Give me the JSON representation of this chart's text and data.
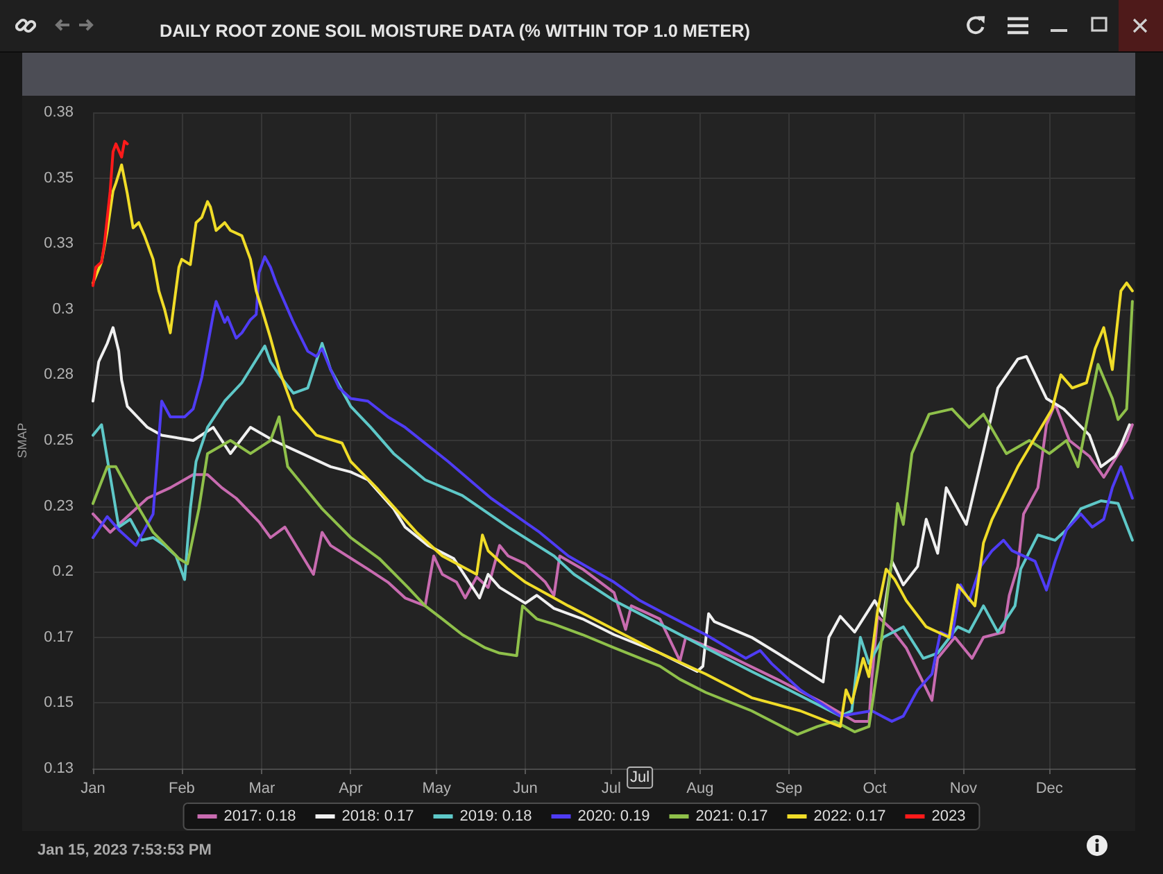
{
  "chart_data": {
    "type": "line",
    "title": "DAILY ROOT ZONE SOIL MOISTURE DATA (% WITHIN TOP 1.0 METER)",
    "ylabel": "SMAP",
    "xlim": [
      "--01-01",
      "--12-31"
    ],
    "xticks": [
      {
        "value": "--01-01",
        "label": "Jan"
      },
      {
        "value": "--02-01",
        "label": "Feb"
      },
      {
        "value": "--03-01",
        "label": "Mar"
      },
      {
        "value": "--04-01",
        "label": "Apr"
      },
      {
        "value": "--05-01",
        "label": "May"
      },
      {
        "value": "--06-01",
        "label": "Jun"
      },
      {
        "value": "--07-01",
        "label": "Jul"
      },
      {
        "value": "--08-01",
        "label": "Aug"
      },
      {
        "value": "--09-01",
        "label": "Sep"
      },
      {
        "value": "--10-01",
        "label": "Oct"
      },
      {
        "value": "--11-01",
        "label": "Nov"
      },
      {
        "value": "--12-01",
        "label": "Dec"
      }
    ],
    "ylim": [
      0.125,
      0.375
    ],
    "yticks": [
      {
        "value": 0.125,
        "label": "0.13"
      },
      0.15,
      {
        "value": 0.175,
        "label": "0.17"
      },
      0.2,
      {
        "value": 0.225,
        "label": "0.23"
      },
      0.25,
      {
        "value": 0.275,
        "label": "0.28"
      },
      0.3,
      {
        "value": 0.325,
        "label": "0.33"
      },
      0.35,
      {
        "value": 0.375,
        "label": "0.38"
      }
    ],
    "grid": true,
    "legend": "bottom",
    "marker": "none",
    "annotations": [
      {
        "text": "Jul",
        "x": "--07-11"
      },
      "Jan 15, 2023 7:53:53 PM"
    ],
    "series": [
      {
        "name": "2017: 0.18",
        "color": "#c86bb0",
        "x": [
          "--01-01",
          "--01-07",
          "--01-12",
          "--01-20",
          "--01-28",
          "--02-05",
          "--02-10",
          "--02-15",
          "--02-20",
          "--02-28",
          "--03-04",
          "--03-09",
          "--03-19",
          "--03-22",
          "--03-25",
          "--04-07",
          "--04-14",
          "--04-20",
          "--04-27",
          "--04-30",
          "--05-03",
          "--05-08",
          "--05-11",
          "--05-15",
          "--05-19",
          "--05-23",
          "--05-26",
          "--06-01",
          "--06-08",
          "--06-11",
          "--06-13",
          "--06-21",
          "--07-02",
          "--07-06",
          "--07-08",
          "--07-18",
          "--07-25",
          "--07-27",
          "--08-11",
          "--08-28",
          "--09-13",
          "--09-24",
          "--09-29",
          "--09-30",
          "--10-02",
          "--10-07",
          "--10-12",
          "--10-21",
          "--10-23",
          "--10-29",
          "--11-04",
          "--11-08",
          "--11-15",
          "--11-17",
          "--11-20",
          "--11-22",
          "--11-27",
          "--11-30",
          "--12-03",
          "--12-08",
          "--12-15",
          "--12-20",
          "--12-28",
          "--12-30"
        ],
        "values": [
          0.222,
          0.215,
          0.22,
          0.228,
          0.232,
          0.237,
          0.237,
          0.232,
          0.228,
          0.219,
          0.213,
          0.217,
          0.199,
          0.215,
          0.21,
          0.201,
          0.196,
          0.19,
          0.187,
          0.206,
          0.199,
          0.196,
          0.19,
          0.198,
          0.194,
          0.21,
          0.206,
          0.203,
          0.196,
          0.191,
          0.206,
          0.201,
          0.192,
          0.178,
          0.187,
          0.182,
          0.166,
          0.175,
          0.168,
          0.159,
          0.15,
          0.143,
          0.143,
          0.159,
          0.183,
          0.178,
          0.171,
          0.151,
          0.167,
          0.175,
          0.167,
          0.175,
          0.177,
          0.191,
          0.202,
          0.222,
          0.232,
          0.256,
          0.264,
          0.25,
          0.244,
          0.236,
          0.25,
          0.256
        ]
      },
      {
        "name": "2018: 0.17",
        "color": "#f0f0f0",
        "x": [
          "--01-01",
          "--01-03",
          "--01-06",
          "--01-08",
          "--01-10",
          "--01-11",
          "--01-13",
          "--01-20",
          "--01-25",
          "--02-05",
          "--02-12",
          "--02-18",
          "--02-25",
          "--03-05",
          "--03-15",
          "--03-25",
          "--04-01",
          "--04-07",
          "--04-16",
          "--04-20",
          "--04-28",
          "--05-07",
          "--05-16",
          "--05-19",
          "--05-23",
          "--06-01",
          "--06-05",
          "--06-11",
          "--06-21",
          "--07-02",
          "--07-18",
          "--07-31",
          "--08-02",
          "--08-04",
          "--08-06",
          "--08-19",
          "--08-28",
          "--09-13",
          "--09-15",
          "--09-19",
          "--09-24",
          "--10-01",
          "--10-04",
          "--10-07",
          "--10-11",
          "--10-16",
          "--10-19",
          "--10-23",
          "--10-26",
          "--11-02",
          "--11-08",
          "--11-13",
          "--11-20",
          "--11-23",
          "--11-30",
          "--12-06",
          "--12-15",
          "--12-19",
          "--12-24",
          "--12-26",
          "--12-29"
        ],
        "values": [
          0.265,
          0.28,
          0.287,
          0.293,
          0.284,
          0.273,
          0.263,
          0.255,
          0.252,
          0.25,
          0.255,
          0.245,
          0.255,
          0.25,
          0.245,
          0.24,
          0.238,
          0.235,
          0.224,
          0.217,
          0.21,
          0.205,
          0.19,
          0.199,
          0.194,
          0.188,
          0.191,
          0.186,
          0.182,
          0.176,
          0.169,
          0.162,
          0.164,
          0.184,
          0.181,
          0.175,
          0.169,
          0.158,
          0.175,
          0.183,
          0.177,
          0.189,
          0.183,
          0.204,
          0.195,
          0.202,
          0.22,
          0.207,
          0.232,
          0.218,
          0.246,
          0.27,
          0.281,
          0.282,
          0.266,
          0.262,
          0.252,
          0.24,
          0.244,
          0.248,
          0.256
        ]
      },
      {
        "name": "2019: 0.18",
        "color": "#5ec8c8",
        "x": [
          "--01-01",
          "--01-04",
          "--01-08",
          "--01-10",
          "--01-14",
          "--01-18",
          "--01-22",
          "--01-26",
          "--01-30",
          "--02-02",
          "--02-04",
          "--02-06",
          "--02-10",
          "--02-16",
          "--02-22",
          "--03-02",
          "--03-04",
          "--03-07",
          "--03-12",
          "--03-17",
          "--03-22",
          "--03-25",
          "--04-01",
          "--04-08",
          "--04-16",
          "--04-27",
          "--05-10",
          "--05-26",
          "--06-11",
          "--06-18",
          "--07-02",
          "--07-18",
          "--08-03",
          "--08-19",
          "--09-01",
          "--09-19",
          "--09-23",
          "--09-26",
          "--09-29",
          "--10-04",
          "--10-11",
          "--10-18",
          "--10-23",
          "--10-30",
          "--11-03",
          "--11-08",
          "--11-13",
          "--11-19",
          "--11-21",
          "--11-27",
          "--12-03",
          "--12-07",
          "--12-12",
          "--12-19",
          "--12-25",
          "--12-30"
        ],
        "values": [
          0.252,
          0.256,
          0.23,
          0.217,
          0.22,
          0.212,
          0.213,
          0.21,
          0.206,
          0.197,
          0.224,
          0.242,
          0.255,
          0.265,
          0.272,
          0.286,
          0.28,
          0.275,
          0.268,
          0.27,
          0.287,
          0.277,
          0.263,
          0.255,
          0.245,
          0.235,
          0.229,
          0.217,
          0.206,
          0.199,
          0.189,
          0.18,
          0.171,
          0.162,
          0.155,
          0.145,
          0.147,
          0.175,
          0.165,
          0.175,
          0.179,
          0.167,
          0.169,
          0.179,
          0.177,
          0.187,
          0.177,
          0.187,
          0.201,
          0.214,
          0.212,
          0.216,
          0.224,
          0.227,
          0.226,
          0.212
        ]
      },
      {
        "name": "2020: 0.19",
        "color": "#4f3cf5",
        "x": [
          "--01-01",
          "--01-06",
          "--01-10",
          "--01-16",
          "--01-22",
          "--01-25",
          "--01-28",
          "--02-02",
          "--02-05",
          "--02-08",
          "--02-12",
          "--02-13",
          "--02-16",
          "--02-17",
          "--02-20",
          "--02-22",
          "--02-25",
          "--02-27",
          "--02-28",
          "--03-02",
          "--03-04",
          "--03-06",
          "--03-08",
          "--03-12",
          "--03-17",
          "--03-20",
          "--03-22",
          "--03-25",
          "--03-28",
          "--04-01",
          "--04-07",
          "--04-14",
          "--04-20",
          "--05-05",
          "--05-20",
          "--06-06",
          "--06-16",
          "--06-24",
          "--07-02",
          "--07-11",
          "--07-18",
          "--08-03",
          "--08-17",
          "--08-22",
          "--08-26",
          "--09-05",
          "--09-19",
          "--09-30",
          "--10-07",
          "--10-11",
          "--10-16",
          "--10-21",
          "--10-24",
          "--10-28",
          "--10-31",
          "--11-03",
          "--11-07",
          "--11-11",
          "--11-15",
          "--11-18",
          "--11-26",
          "--11-30",
          "--12-03",
          "--12-07",
          "--12-12",
          "--12-16",
          "--12-20",
          "--12-23",
          "--12-26",
          "--12-30"
        ],
        "values": [
          0.213,
          0.221,
          0.216,
          0.21,
          0.222,
          0.265,
          0.259,
          0.259,
          0.262,
          0.274,
          0.298,
          0.303,
          0.295,
          0.297,
          0.289,
          0.291,
          0.296,
          0.298,
          0.314,
          0.32,
          0.316,
          0.31,
          0.305,
          0.295,
          0.284,
          0.282,
          0.285,
          0.277,
          0.27,
          0.266,
          0.265,
          0.259,
          0.255,
          0.242,
          0.228,
          0.215,
          0.206,
          0.201,
          0.196,
          0.189,
          0.185,
          0.176,
          0.167,
          0.17,
          0.165,
          0.155,
          0.145,
          0.147,
          0.143,
          0.145,
          0.155,
          0.161,
          0.177,
          0.175,
          0.195,
          0.189,
          0.202,
          0.208,
          0.212,
          0.208,
          0.204,
          0.193,
          0.204,
          0.216,
          0.222,
          0.217,
          0.22,
          0.232,
          0.24,
          0.228
        ]
      },
      {
        "name": "2021: 0.17",
        "color": "#8fc04a",
        "x": [
          "--01-01",
          "--01-06",
          "--01-09",
          "--01-15",
          "--01-22",
          "--01-31",
          "--02-03",
          "--02-07",
          "--02-10",
          "--02-18",
          "--02-25",
          "--03-04",
          "--03-07",
          "--03-10",
          "--03-22",
          "--04-01",
          "--04-11",
          "--04-21",
          "--04-27",
          "--05-03",
          "--05-10",
          "--05-18",
          "--05-23",
          "--05-29",
          "--05-31",
          "--06-05",
          "--06-11",
          "--06-21",
          "--07-02",
          "--07-18",
          "--07-25",
          "--08-03",
          "--08-19",
          "--09-04",
          "--09-11",
          "--09-17",
          "--09-24",
          "--09-29",
          "--10-02",
          "--10-07",
          "--10-09",
          "--10-11",
          "--10-14",
          "--10-20",
          "--10-28",
          "--11-03",
          "--11-08",
          "--11-16",
          "--11-24",
          "--12-01",
          "--12-07",
          "--12-11",
          "--12-18",
          "--12-23",
          "--12-25",
          "--12-28",
          "--12-30"
        ],
        "values": [
          0.226,
          0.24,
          0.24,
          0.228,
          0.215,
          0.205,
          0.203,
          0.224,
          0.245,
          0.25,
          0.245,
          0.25,
          0.259,
          0.24,
          0.224,
          0.213,
          0.205,
          0.194,
          0.187,
          0.182,
          0.176,
          0.171,
          0.169,
          0.168,
          0.187,
          0.182,
          0.18,
          0.176,
          0.171,
          0.164,
          0.159,
          0.154,
          0.147,
          0.138,
          0.141,
          0.143,
          0.139,
          0.141,
          0.163,
          0.204,
          0.226,
          0.218,
          0.245,
          0.26,
          0.262,
          0.255,
          0.26,
          0.245,
          0.25,
          0.245,
          0.25,
          0.24,
          0.279,
          0.266,
          0.258,
          0.262,
          0.303
        ]
      },
      {
        "name": "2022: 0.17",
        "color": "#f0dc28",
        "x": [
          "--01-01",
          "--01-04",
          "--01-06",
          "--01-08",
          "--01-09",
          "--01-11",
          "--01-13",
          "--01-15",
          "--01-17",
          "--01-19",
          "--01-22",
          "--01-24",
          "--01-26",
          "--01-28",
          "--01-31",
          "--02-01",
          "--02-04",
          "--02-06",
          "--02-08",
          "--02-10",
          "--02-11",
          "--02-13",
          "--02-16",
          "--02-18",
          "--02-22",
          "--02-25",
          "--02-27",
          "--03-01",
          "--03-04",
          "--03-07",
          "--03-12",
          "--03-20",
          "--03-29",
          "--04-01",
          "--04-10",
          "--04-24",
          "--05-03",
          "--05-15",
          "--05-17",
          "--05-19",
          "--05-26",
          "--06-01",
          "--06-11",
          "--06-16",
          "--07-02",
          "--07-18",
          "--08-03",
          "--08-19",
          "--09-05",
          "--09-19",
          "--09-21",
          "--09-23",
          "--09-27",
          "--09-29",
          "--10-02",
          "--10-05",
          "--10-08",
          "--10-12",
          "--10-19",
          "--10-23",
          "--10-27",
          "--10-30",
          "--11-02",
          "--11-05",
          "--11-08",
          "--11-11",
          "--11-20",
          "--12-02",
          "--12-05",
          "--12-09",
          "--12-14",
          "--12-17",
          "--12-20",
          "--12-23",
          "--12-26",
          "--12-28",
          "--12-30"
        ],
        "values": [
          0.31,
          0.318,
          0.33,
          0.345,
          0.348,
          0.355,
          0.344,
          0.331,
          0.333,
          0.328,
          0.319,
          0.307,
          0.3,
          0.291,
          0.316,
          0.319,
          0.317,
          0.333,
          0.335,
          0.341,
          0.339,
          0.33,
          0.333,
          0.33,
          0.328,
          0.319,
          0.307,
          0.3,
          0.289,
          0.277,
          0.262,
          0.252,
          0.249,
          0.242,
          0.232,
          0.215,
          0.206,
          0.199,
          0.214,
          0.208,
          0.201,
          0.196,
          0.19,
          0.187,
          0.178,
          0.169,
          0.161,
          0.152,
          0.147,
          0.141,
          0.155,
          0.15,
          0.167,
          0.16,
          0.185,
          0.201,
          0.197,
          0.189,
          0.179,
          0.177,
          0.175,
          0.195,
          0.191,
          0.187,
          0.211,
          0.22,
          0.24,
          0.262,
          0.275,
          0.27,
          0.272,
          0.285,
          0.293,
          0.277,
          0.307,
          0.31,
          0.307
        ]
      },
      {
        "name": "2023",
        "color": "#ff1a1a",
        "x": [
          "--01-01",
          "--01-02",
          "--01-04",
          "--01-05",
          "--01-07",
          "--01-08",
          "--01-09",
          "--01-11",
          "--01-12",
          "--01-13"
        ],
        "values": [
          0.309,
          0.316,
          0.318,
          0.325,
          0.345,
          0.36,
          0.363,
          0.358,
          0.364,
          0.363
        ]
      }
    ]
  }
}
